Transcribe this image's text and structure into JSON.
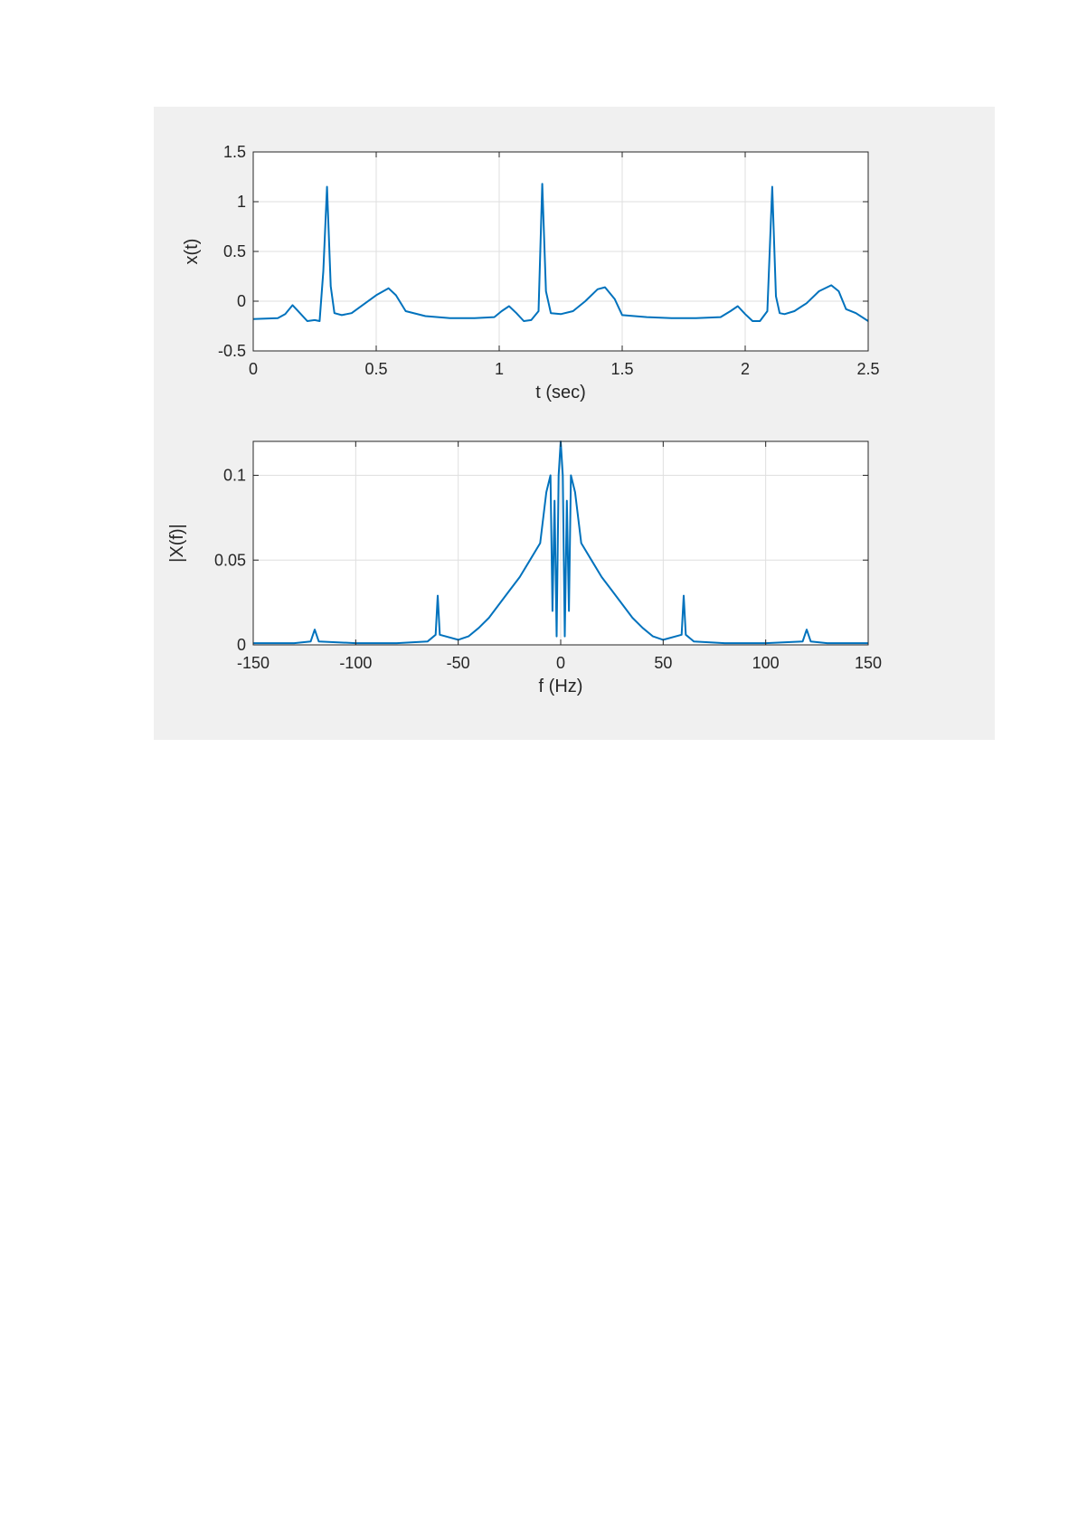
{
  "figure": {
    "background": "#f0f0f0",
    "line_color": "#0072bd"
  },
  "chart_data": [
    {
      "type": "line",
      "xlabel": "t (sec)",
      "ylabel": "x(t)",
      "xlim": [
        0,
        2.5
      ],
      "ylim": [
        -0.5,
        1.5
      ],
      "xticks": [
        0,
        0.5,
        1,
        1.5,
        2,
        2.5
      ],
      "xtick_labels": [
        "0",
        "0.5",
        "1",
        "1.5",
        "2",
        "2.5"
      ],
      "yticks": [
        -0.5,
        0,
        0.5,
        1,
        1.5
      ],
      "ytick_labels": [
        "-0.5",
        "0",
        "0.5",
        "1",
        "1.5"
      ],
      "grid": true,
      "series": [
        {
          "color": "#0072bd",
          "x": [
            0,
            0.1,
            0.13,
            0.16,
            0.19,
            0.22,
            0.25,
            0.27,
            0.285,
            0.3,
            0.315,
            0.33,
            0.36,
            0.4,
            0.45,
            0.5,
            0.55,
            0.58,
            0.62,
            0.7,
            0.8,
            0.9,
            0.98,
            1.01,
            1.04,
            1.07,
            1.1,
            1.13,
            1.16,
            1.175,
            1.19,
            1.21,
            1.25,
            1.3,
            1.35,
            1.4,
            1.43,
            1.47,
            1.5,
            1.6,
            1.7,
            1.8,
            1.9,
            1.94,
            1.97,
            2.0,
            2.03,
            2.06,
            2.09,
            2.11,
            2.125,
            2.14,
            2.16,
            2.2,
            2.25,
            2.3,
            2.35,
            2.38,
            2.41,
            2.45,
            2.5
          ],
          "y": [
            -0.18,
            -0.17,
            -0.13,
            -0.04,
            -0.12,
            -0.2,
            -0.19,
            -0.2,
            0.3,
            1.15,
            0.15,
            -0.12,
            -0.14,
            -0.12,
            -0.03,
            0.06,
            0.13,
            0.06,
            -0.1,
            -0.15,
            -0.17,
            -0.17,
            -0.16,
            -0.1,
            -0.05,
            -0.12,
            -0.2,
            -0.19,
            -0.1,
            1.18,
            0.1,
            -0.12,
            -0.13,
            -0.1,
            0.0,
            0.12,
            0.14,
            0.02,
            -0.14,
            -0.16,
            -0.17,
            -0.17,
            -0.16,
            -0.1,
            -0.05,
            -0.13,
            -0.2,
            -0.2,
            -0.1,
            1.15,
            0.05,
            -0.12,
            -0.13,
            -0.1,
            -0.02,
            0.1,
            0.16,
            0.1,
            -0.08,
            -0.12,
            -0.2
          ]
        }
      ]
    },
    {
      "type": "line",
      "xlabel": "f (Hz)",
      "ylabel": "|X(f)|",
      "xlim": [
        -150,
        150
      ],
      "ylim": [
        0,
        0.12
      ],
      "xticks": [
        -150,
        -100,
        -50,
        0,
        50,
        100,
        150
      ],
      "xtick_labels": [
        "-150",
        "-100",
        "-50",
        "0",
        "50",
        "100",
        "150"
      ],
      "yticks": [
        0,
        0.05,
        0.1
      ],
      "ytick_labels": [
        "0",
        "0.05",
        "0.1"
      ],
      "grid": true,
      "series": [
        {
          "color": "#0072bd",
          "x": [
            -150,
            -130,
            -122,
            -120,
            -118,
            -100,
            -80,
            -65,
            -61,
            -60,
            -59,
            -50,
            -45,
            -40,
            -35,
            -30,
            -25,
            -20,
            -15,
            -10,
            -7,
            -5,
            -4,
            -3,
            -2,
            -1,
            0,
            1,
            2,
            3,
            4,
            5,
            7,
            10,
            15,
            20,
            25,
            30,
            35,
            40,
            45,
            50,
            59,
            60,
            61,
            65,
            80,
            100,
            118,
            120,
            122,
            130,
            150
          ],
          "y": [
            0.001,
            0.001,
            0.002,
            0.009,
            0.002,
            0.001,
            0.001,
            0.002,
            0.006,
            0.029,
            0.006,
            0.003,
            0.005,
            0.01,
            0.016,
            0.024,
            0.032,
            0.04,
            0.05,
            0.06,
            0.09,
            0.1,
            0.02,
            0.085,
            0.005,
            0.1,
            0.12,
            0.1,
            0.005,
            0.085,
            0.02,
            0.1,
            0.09,
            0.06,
            0.05,
            0.04,
            0.032,
            0.024,
            0.016,
            0.01,
            0.005,
            0.003,
            0.006,
            0.029,
            0.006,
            0.002,
            0.001,
            0.001,
            0.002,
            0.009,
            0.002,
            0.001,
            0.001
          ]
        }
      ]
    }
  ]
}
